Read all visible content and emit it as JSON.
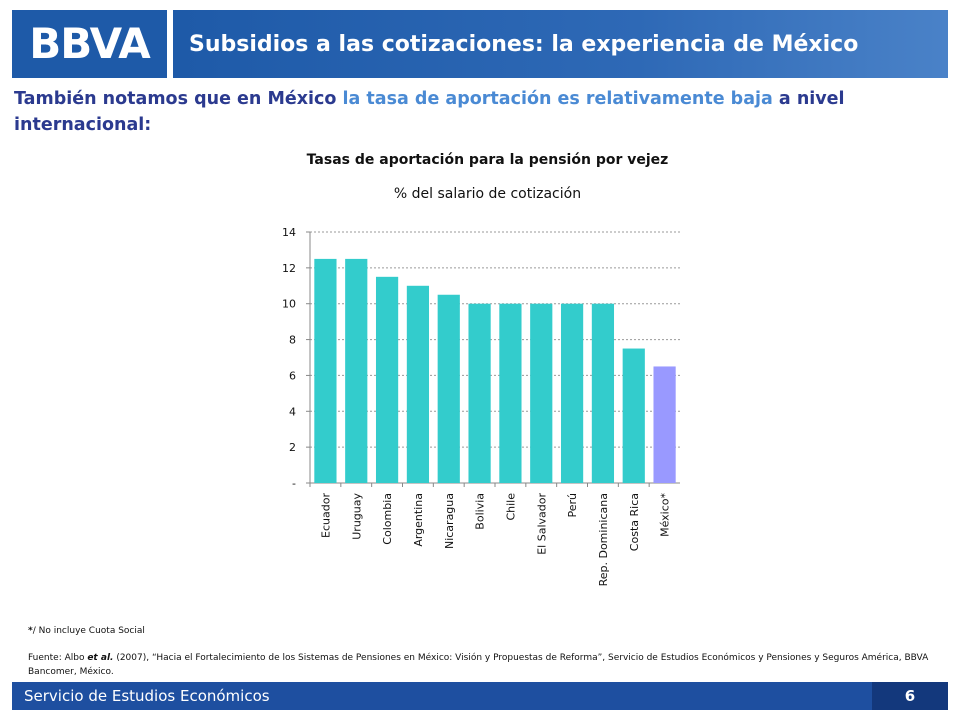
{
  "header": {
    "logo": "BBVA",
    "title": "Subsidios a las cotizaciones: la experiencia de México"
  },
  "subtitle": {
    "part1": "También notamos que en México ",
    "part2": "la tasa de aportación es relativamente baja",
    "part3": " a nivel internacional:"
  },
  "colors": {
    "brand_blue": "#1e5aa8",
    "bar_default": "#33cccc",
    "bar_highlight": "#9999ff"
  },
  "chart_data": {
    "type": "bar",
    "title": "Tasas de aportación para la pensión por vejez",
    "subtitle": "% del salario de cotización",
    "categories": [
      "Ecuador",
      "Uruguay",
      "Colombia",
      "Argentina",
      "Nicaragua",
      "Bolivia",
      "Chile",
      "El Salvador",
      "Perú",
      "Rep. Dominicana",
      "Costa Rica",
      "México*"
    ],
    "values": [
      12.5,
      12.5,
      11.5,
      11.0,
      10.5,
      10.0,
      10.0,
      10.0,
      10.0,
      10.0,
      7.5,
      6.5
    ],
    "highlight": [
      "México*"
    ],
    "yticks": [
      "-",
      "2",
      "4",
      "6",
      "8",
      "10",
      "12",
      "14"
    ],
    "ylim": [
      0,
      14
    ],
    "grid": true,
    "legend": "none"
  },
  "footnote": {
    "mark": "*",
    "text": "/ No incluye Cuota Social"
  },
  "source": {
    "prefix": "Fuente: Albo ",
    "etal": "et al.",
    "text": " (2007), “Hacia el Fortalecimiento de los Sistemas de Pensiones en México: Visión y Propuestas de Reforma”, Servicio de Estudios Económicos y Pensiones y Seguros América, BBVA Bancomer, México."
  },
  "footer": {
    "label": "Servicio de Estudios Económicos",
    "page": "6"
  }
}
